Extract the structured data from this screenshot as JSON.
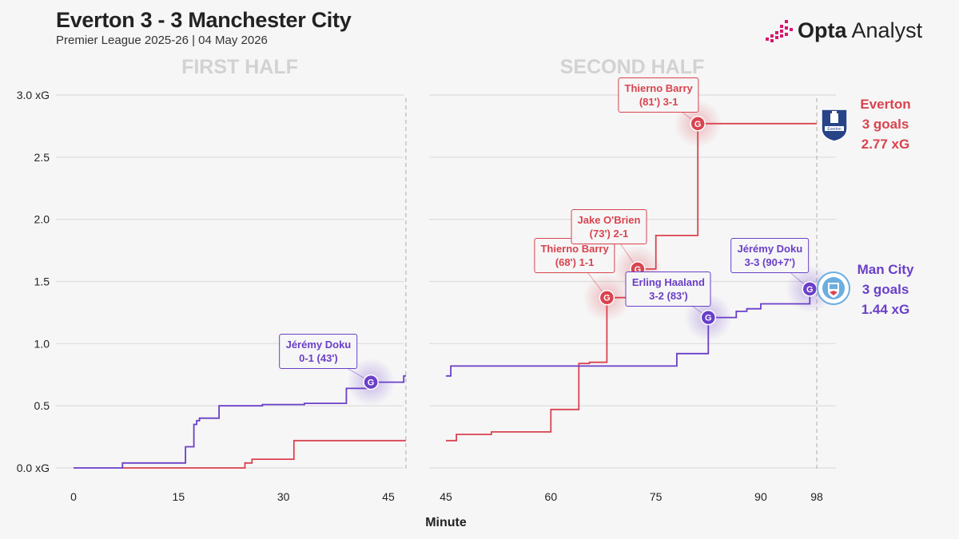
{
  "header": {
    "title": "Everton 3 - 3 Manchester City",
    "subtitle": "Premier League 2025-26 | 04 May 2026"
  },
  "brand": {
    "name_bold": "Opta",
    "name_rest": " Analyst",
    "icon": "opta-bars-icon"
  },
  "colors": {
    "home": "#d9434f",
    "away": "#6a3fc8",
    "grid": "#dcdcdc",
    "panel_label": "#d2d2d2",
    "background": "#f6f6f6"
  },
  "chart_data": {
    "type": "line",
    "title": "Everton 3 - 3 Manchester City",
    "subtitle": "Premier League 2025-26 | 04 May 2026",
    "xlabel": "Minute",
    "ylim": [
      0,
      3.0
    ],
    "ytick_labels": [
      "0.0 xG",
      "0.5",
      "1.0",
      "1.5",
      "2.0",
      "2.5",
      "3.0 xG"
    ],
    "ytick_values": [
      0,
      0.5,
      1.0,
      1.5,
      2.0,
      2.5,
      3.0
    ],
    "grid": "horizontal",
    "panels": [
      {
        "label": "FIRST HALF",
        "xlim": [
          0,
          48
        ],
        "xticks": [
          0,
          15,
          30,
          45
        ],
        "end_marker": 47.5,
        "series": [
          {
            "team": "home",
            "points": [
              [
                7,
                0.0
              ],
              [
                24.5,
                0.0
              ],
              [
                24.5,
                0.04
              ],
              [
                25.5,
                0.04
              ],
              [
                25.5,
                0.07
              ],
              [
                31.5,
                0.07
              ],
              [
                31.5,
                0.22
              ],
              [
                47.5,
                0.22
              ]
            ]
          },
          {
            "team": "away",
            "points": [
              [
                0,
                0.0
              ],
              [
                7,
                0.0
              ],
              [
                7,
                0.04
              ],
              [
                16,
                0.04
              ],
              [
                16,
                0.17
              ],
              [
                17.2,
                0.17
              ],
              [
                17.2,
                0.35
              ],
              [
                17.6,
                0.35
              ],
              [
                17.6,
                0.38
              ],
              [
                18,
                0.38
              ],
              [
                18,
                0.4
              ],
              [
                20.8,
                0.4
              ],
              [
                20.8,
                0.5
              ],
              [
                27,
                0.5
              ],
              [
                27,
                0.51
              ],
              [
                33,
                0.51
              ],
              [
                33,
                0.52
              ],
              [
                39,
                0.52
              ],
              [
                39,
                0.64
              ],
              [
                43,
                0.64
              ],
              [
                43,
                0.69
              ],
              [
                47.2,
                0.69
              ],
              [
                47.2,
                0.74
              ],
              [
                47.5,
                0.74
              ]
            ]
          }
        ]
      },
      {
        "label": "SECOND HALF",
        "xlim": [
          45,
          98
        ],
        "xticks": [
          45,
          60,
          75,
          90,
          98
        ],
        "end_marker": 98,
        "series": [
          {
            "team": "home",
            "points": [
              [
                45,
                0.22
              ],
              [
                46.5,
                0.22
              ],
              [
                46.5,
                0.27
              ],
              [
                51.5,
                0.27
              ],
              [
                51.5,
                0.29
              ],
              [
                60,
                0.29
              ],
              [
                60,
                0.47
              ],
              [
                64,
                0.47
              ],
              [
                64,
                0.84
              ],
              [
                65.5,
                0.84
              ],
              [
                65.5,
                0.85
              ],
              [
                68,
                0.85
              ],
              [
                68,
                1.37
              ],
              [
                72,
                1.37
              ],
              [
                72,
                1.6
              ],
              [
                75,
                1.6
              ],
              [
                75,
                1.87
              ],
              [
                81,
                1.87
              ],
              [
                81,
                2.77
              ],
              [
                98,
                2.77
              ]
            ]
          },
          {
            "team": "away",
            "points": [
              [
                45,
                0.74
              ],
              [
                45.7,
                0.74
              ],
              [
                45.7,
                0.82
              ],
              [
                78,
                0.82
              ],
              [
                78,
                0.92
              ],
              [
                82.5,
                0.92
              ],
              [
                82.5,
                1.21
              ],
              [
                86.5,
                1.21
              ],
              [
                86.5,
                1.26
              ],
              [
                88,
                1.26
              ],
              [
                88,
                1.28
              ],
              [
                90,
                1.28
              ],
              [
                90,
                1.32
              ],
              [
                97,
                1.32
              ],
              [
                97,
                1.44
              ],
              [
                98,
                1.44
              ]
            ]
          }
        ]
      }
    ],
    "goals": [
      {
        "panel": 0,
        "team": "away",
        "minute": 42.5,
        "xg": 0.69,
        "marker": "G",
        "label_line1": "Jérémy Doku",
        "label_line2": "0-1 (43')",
        "label_min": 35,
        "label_xg": 0.94
      },
      {
        "panel": 1,
        "team": "home",
        "minute": 68,
        "xg": 1.37,
        "marker": "G",
        "label_line1": "Thierno Barry",
        "label_line2": "(68') 1-1",
        "label_min": 63.4,
        "label_xg": 1.71
      },
      {
        "panel": 1,
        "team": "home",
        "minute": 72.4,
        "xg": 1.6,
        "marker": "G",
        "label_line1": "Jake O'Brien",
        "label_line2": "(73') 2-1",
        "label_min": 68.3,
        "label_xg": 1.94
      },
      {
        "panel": 1,
        "team": "home",
        "minute": 81,
        "xg": 2.77,
        "marker": "G",
        "label_line1": "Thierno Barry",
        "label_line2": "(81') 3-1",
        "label_min": 75.4,
        "label_xg": 3.0
      },
      {
        "panel": 1,
        "team": "away",
        "minute": 82.5,
        "xg": 1.21,
        "marker": "G",
        "label_line1": "Erling Haaland",
        "label_line2": "3-2 (83')",
        "label_min": 76.8,
        "label_xg": 1.44
      },
      {
        "panel": 1,
        "team": "away",
        "minute": 97,
        "xg": 1.44,
        "marker": "G",
        "label_line1": "Jérémy Doku",
        "label_line2": "3-3 (90+7')",
        "label_min": 91.3,
        "label_xg": 1.71
      }
    ]
  },
  "teams": {
    "home": {
      "name": "Everton",
      "goals": "3 goals",
      "xg": "2.77 xG",
      "crest": "everton-crest-icon",
      "crest_text": "Everton"
    },
    "away": {
      "name": "Man City",
      "goals": "3 goals",
      "xg": "1.44 xG",
      "crest": "man-city-crest-icon",
      "crest_text": "MANCHESTER CITY"
    }
  }
}
